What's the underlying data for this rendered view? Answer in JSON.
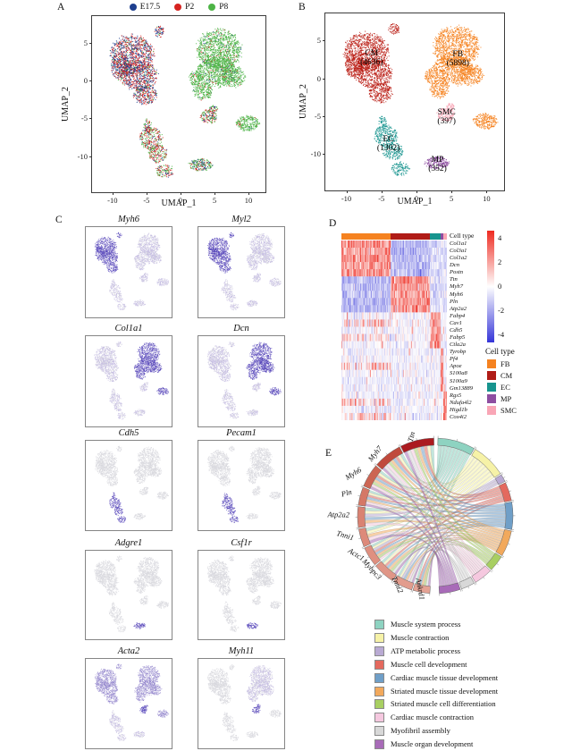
{
  "figure": {
    "panel_labels": {
      "A": "A",
      "B": "B",
      "C": "C",
      "D": "D",
      "E": "E"
    }
  },
  "chart_data": [
    {
      "id": "A",
      "type": "scatter",
      "xlabel": "UMAP_1",
      "ylabel": "UMAP_2",
      "xlim": [
        -13,
        12.5
      ],
      "ylim": [
        -14.8,
        8.6
      ],
      "xticks": [
        -10,
        -5,
        0,
        5,
        10
      ],
      "yticks": [
        5,
        0,
        -5,
        -10
      ],
      "legend": [
        {
          "label": "E17.5",
          "color": "#1d3f8f"
        },
        {
          "label": "P2",
          "color": "#d62320"
        },
        {
          "label": "P8",
          "color": "#4db446"
        }
      ],
      "mixtures": {
        "CM": [
          0.45,
          0.45,
          0.1
        ],
        "FB": [
          0.03,
          0.06,
          0.91
        ],
        "FBs": [
          0.02,
          0.05,
          0.93
        ],
        "SMC": [
          0.2,
          0.35,
          0.45
        ],
        "EC": [
          0.15,
          0.45,
          0.4
        ],
        "MP": [
          0.25,
          0.2,
          0.55
        ]
      }
    },
    {
      "id": "B",
      "type": "scatter",
      "xlabel": "UMAP_1",
      "ylabel": "UMAP_2",
      "xlim": [
        -13,
        12.5
      ],
      "ylim": [
        -14.8,
        8.6
      ],
      "xticks": [
        -10,
        -5,
        0,
        5,
        10
      ],
      "yticks": [
        5,
        0,
        -5,
        -10
      ],
      "clusters": [
        {
          "name": "CM",
          "count": 4636,
          "color": "#bb1f17",
          "label_x": -6.4,
          "label_y": 2.6
        },
        {
          "name": "FB",
          "count": 5898,
          "color": "#f58220",
          "label_x": 5.9,
          "label_y": 2.4
        },
        {
          "name": "SMC",
          "count": 397,
          "color": "#f9a6b6",
          "label_x": 4.3,
          "label_y": -5.2
        },
        {
          "name": "EC",
          "count": 1302,
          "color": "#17948e",
          "label_x": -4.0,
          "label_y": -8.8
        },
        {
          "name": "MP",
          "count": 352,
          "color": "#8e4ea1",
          "label_x": 3.0,
          "label_y": -11.5
        }
      ]
    },
    {
      "id": "C",
      "type": "feature-scatter-grid",
      "colorscale": [
        "#d9d9de",
        "#c4bce2",
        "#9184cc",
        "#5847bd"
      ],
      "genes": [
        {
          "name": "Myh6",
          "levels": {
            "CM": 3,
            "FB": 1,
            "FBs": 1,
            "SMC": 1,
            "EC": 1,
            "MP": 1
          }
        },
        {
          "name": "Myl2",
          "levels": {
            "CM": 3,
            "FB": 1,
            "FBs": 1,
            "SMC": 1,
            "EC": 1,
            "MP": 1
          }
        },
        {
          "name": "Col1a1",
          "levels": {
            "CM": 1,
            "FB": 3,
            "FBs": 3,
            "SMC": 1,
            "EC": 1,
            "MP": 1
          }
        },
        {
          "name": "Dcn",
          "levels": {
            "CM": 1,
            "FB": 3,
            "FBs": 3,
            "SMC": 1,
            "EC": 1,
            "MP": 1
          }
        },
        {
          "name": "Cdh5",
          "levels": {
            "CM": 0,
            "FB": 0,
            "FBs": 0,
            "SMC": 0,
            "EC": 3,
            "MP": 0
          }
        },
        {
          "name": "Pecam1",
          "levels": {
            "CM": 0,
            "FB": 0,
            "FBs": 0,
            "SMC": 0,
            "EC": 3,
            "MP": 0
          }
        },
        {
          "name": "Adgre1",
          "levels": {
            "CM": 0,
            "FB": 0,
            "FBs": 0,
            "SMC": 0,
            "EC": 0,
            "MP": 3
          }
        },
        {
          "name": "Csf1r",
          "levels": {
            "CM": 0,
            "FB": 0,
            "FBs": 0,
            "SMC": 0,
            "EC": 0,
            "MP": 3
          }
        },
        {
          "name": "Acta2",
          "levels": {
            "CM": 2,
            "FB": 2,
            "FBs": 2,
            "SMC": 3,
            "EC": 1,
            "MP": 1
          }
        },
        {
          "name": "Myh11",
          "levels": {
            "CM": 0,
            "FB": 1,
            "FBs": 0,
            "SMC": 3,
            "EC": 0,
            "MP": 0
          }
        }
      ]
    },
    {
      "id": "D",
      "type": "heatmap",
      "annotation_label": "Cell type",
      "legend_title": "Cell type",
      "colorbar_ticks": [
        4,
        2,
        0,
        -2,
        -4
      ],
      "colors": {
        "high": "#ee2b21",
        "zero": "#ffffff",
        "low": "#3535d8"
      },
      "col_groups": [
        {
          "name": "FB",
          "frac": 0.47,
          "color": "#f58220"
        },
        {
          "name": "CM",
          "frac": 0.37,
          "color": "#b01c17"
        },
        {
          "name": "EC",
          "frac": 0.1,
          "color": "#17948e"
        },
        {
          "name": "MP",
          "frac": 0.028,
          "color": "#8e4ea1"
        },
        {
          "name": "SMC",
          "frac": 0.032,
          "color": "#f9a6b6"
        }
      ],
      "genes": [
        {
          "name": "Col1a1",
          "group": "FB"
        },
        {
          "name": "Col3a1",
          "group": "FB"
        },
        {
          "name": "Col1a2",
          "group": "FB"
        },
        {
          "name": "Dcn",
          "group": "FB"
        },
        {
          "name": "Postn",
          "group": "FB"
        },
        {
          "name": "Ttn",
          "group": "CM"
        },
        {
          "name": "Myh7",
          "group": "CM"
        },
        {
          "name": "Myh6",
          "group": "CM"
        },
        {
          "name": "Pln",
          "group": "CM"
        },
        {
          "name": "Atp2a2",
          "group": "CM"
        },
        {
          "name": "Fabp4",
          "group": "EC"
        },
        {
          "name": "Cav1",
          "group": "EC",
          "also": [
            "FB"
          ]
        },
        {
          "name": "Cdh5",
          "group": "EC"
        },
        {
          "name": "Fabp5",
          "group": "EC",
          "also": [
            "FB"
          ]
        },
        {
          "name": "Ctla2a",
          "group": "EC"
        },
        {
          "name": "Tyrobp",
          "group": "MP"
        },
        {
          "name": "Pf4",
          "group": "MP"
        },
        {
          "name": "Apoe",
          "group": "MP",
          "also": [
            "FB"
          ]
        },
        {
          "name": "S100a8",
          "group": "MP"
        },
        {
          "name": "S100a9",
          "group": "MP"
        },
        {
          "name": "Gm13889",
          "group": "MP",
          "also": [
            "SMC"
          ]
        },
        {
          "name": "Rgs5",
          "group": "SMC"
        },
        {
          "name": "Ndufa4l2",
          "group": "SMC",
          "also": [
            "FB"
          ]
        },
        {
          "name": "Higd1b",
          "group": "SMC"
        },
        {
          "name": "Cox4i2",
          "group": "SMC",
          "also": [
            "FB"
          ]
        }
      ]
    },
    {
      "id": "E",
      "type": "chord",
      "genes": [
        {
          "name": "Ttn",
          "span": 26,
          "color": "#ab1a1f"
        },
        {
          "name": "Myh7",
          "span": 22,
          "color": "#c04a3c"
        },
        {
          "name": "Myh6",
          "span": 18,
          "color": "#cc6553"
        },
        {
          "name": "Pln",
          "span": 14,
          "color": "#d57866"
        },
        {
          "name": "Atp2a2",
          "span": 16,
          "color": "#d98272"
        },
        {
          "name": "Tnni1",
          "span": 14,
          "color": "#dd8a7a"
        },
        {
          "name": "Actc1",
          "span": 15,
          "color": "#df9080"
        },
        {
          "name": "Mybpc3",
          "span": 17,
          "color": "#e09687"
        },
        {
          "name": "Tnnt2",
          "span": 15,
          "color": "#e29c8d"
        },
        {
          "name": "Ankrd1",
          "span": 13,
          "color": "#e4a294"
        }
      ],
      "terms": [
        {
          "name": "Muscle system process",
          "color": "#8ed3c1",
          "span": 30,
          "gene_links": [
            0,
            1,
            2,
            3,
            4,
            5,
            6,
            7,
            8,
            9
          ]
        },
        {
          "name": "Muscle contraction",
          "color": "#f6f2a7",
          "span": 28,
          "gene_links": [
            0,
            1,
            2,
            3,
            4,
            5,
            6,
            7,
            8
          ]
        },
        {
          "name": "ATP metabolic process",
          "color": "#b9aad3",
          "span": 6,
          "gene_links": [
            4,
            6,
            8
          ]
        },
        {
          "name": "Muscle cell development",
          "color": "#e4695e",
          "span": 15,
          "gene_links": [
            0,
            1,
            2,
            3,
            6,
            7,
            9
          ]
        },
        {
          "name": "Cardiac muscle tissue development",
          "color": "#6f9fc8",
          "span": 22,
          "gene_links": [
            0,
            1,
            2,
            3,
            4,
            6,
            7,
            8,
            9
          ]
        },
        {
          "name": "Striated muscle tissue development",
          "color": "#f2a95c",
          "span": 21,
          "gene_links": [
            0,
            1,
            2,
            3,
            4,
            5,
            6,
            7,
            8,
            9
          ]
        },
        {
          "name": "Striated muscle cell differentiation",
          "color": "#a8cf62",
          "span": 13,
          "gene_links": [
            0,
            1,
            2,
            6,
            7,
            9
          ]
        },
        {
          "name": "Cardiac muscle contraction",
          "color": "#f5c8df",
          "span": 15,
          "gene_links": [
            0,
            1,
            2,
            3,
            4,
            5,
            6,
            8
          ]
        },
        {
          "name": "Myofibril assembly",
          "color": "#d8d8d8",
          "span": 11,
          "gene_links": [
            0,
            1,
            7,
            8,
            9
          ]
        },
        {
          "name": "Muscle organ development",
          "color": "#a86bb8",
          "span": 17,
          "gene_links": [
            0,
            1,
            2,
            3,
            5,
            7,
            8,
            9
          ]
        }
      ]
    }
  ],
  "umap_shapes": {
    "CM": [
      [
        -7.2,
        3.6,
        3.1,
        2.5
      ],
      [
        -6.2,
        0.8,
        2.7,
        2.0
      ],
      [
        -5.2,
        -1.8,
        1.7,
        1.3
      ],
      [
        -3.2,
        6.6,
        0.8,
        0.7
      ],
      [
        -8.8,
        1.8,
        1.4,
        1.7
      ]
    ],
    "FB": [
      [
        5.6,
        4.2,
        3.2,
        2.7
      ],
      [
        5.2,
        1.2,
        2.9,
        2.0
      ],
      [
        3.2,
        -1.3,
        1.4,
        1.2
      ],
      [
        7.7,
        0.6,
        1.7,
        1.4
      ],
      [
        2.1,
        0.4,
        0.9,
        1.0
      ]
    ],
    "FBs": [
      [
        9.8,
        -5.6,
        1.7,
        1.0
      ]
    ],
    "SMC": [
      [
        4.1,
        -4.7,
        1.2,
        0.9
      ],
      [
        4.8,
        -3.7,
        0.6,
        0.5
      ]
    ],
    "EC": [
      [
        -4.4,
        -7.6,
        1.7,
        1.5
      ],
      [
        -3.4,
        -9.6,
        1.4,
        1.2
      ],
      [
        -2.4,
        -11.9,
        1.3,
        0.9
      ],
      [
        -4.9,
        -5.9,
        0.6,
        1.0
      ]
    ],
    "MP": [
      [
        2.9,
        -11.1,
        1.7,
        0.8
      ]
    ]
  },
  "point_counts": {
    "CM": 2300,
    "FB": 2500,
    "FBs": 260,
    "SMC": 210,
    "EC": 650,
    "MP": 210
  }
}
